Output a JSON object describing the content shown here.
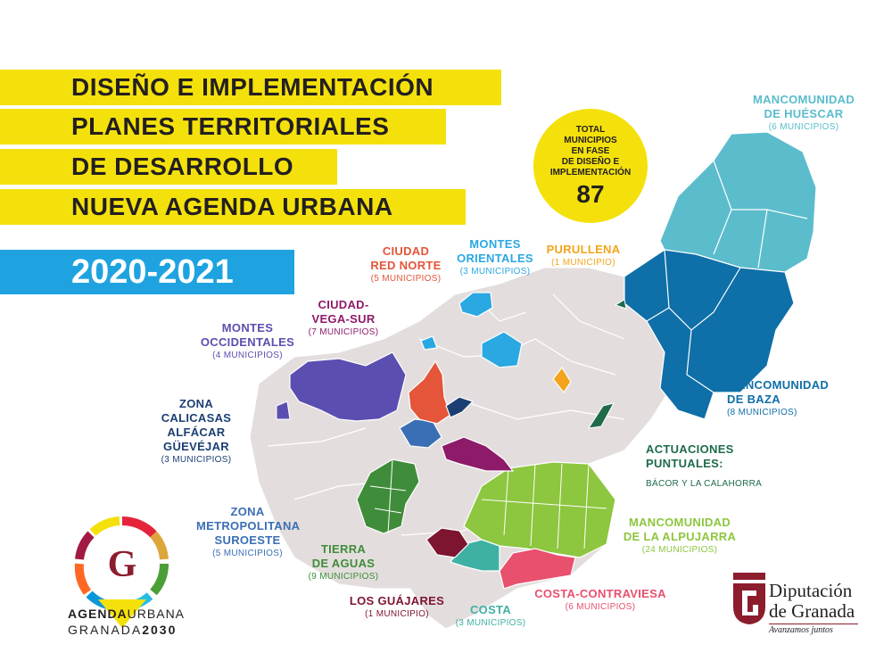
{
  "title": {
    "line1": "DISEÑO E IMPLEMENTACIÓN",
    "line2": "PLANES TERRITORIALES",
    "line3": "DE DESARROLLO",
    "line4": "NUEVA AGENDA URBANA",
    "years": "2020-2021"
  },
  "badge": {
    "text": "TOTAL\nMUNICIPIOS\nEN FASE\nDE DISEÑO E\nIMPLEMENTACIÓN",
    "number": "87"
  },
  "regions": {
    "huescar": {
      "name": "MANCOMUNIDAD\nDE HUÉSCAR",
      "count": "(6 MUNICIPIOS)",
      "color": "#5bbccc"
    },
    "baza": {
      "name": "MANCOMUNIDAD\nDE BAZA",
      "count": "(8 MUNICIPIOS)",
      "color": "#0f6fa8"
    },
    "purullena": {
      "name": "PURULLENA",
      "count": "(1 MUNICIPIO)",
      "color": "#f2a51c"
    },
    "montes_orientales": {
      "name": "MONTES\nORIENTALES",
      "count": "(3 MUNICIPIOS)",
      "color": "#2aa8e2"
    },
    "ciudad_red_norte": {
      "name": "CIUDAD\nRED NORTE",
      "count": "(5 MUNICIPIOS)",
      "color": "#e4553a"
    },
    "ciudad_vega_sur": {
      "name": "CIUDAD-\nVEGA-SUR",
      "count": "(7 MUNICIPIOS)",
      "color": "#8e1a6a"
    },
    "montes_occidentales": {
      "name": "MONTES\nOCCIDENTALES",
      "count": "(4 MUNICIPIOS)",
      "color": "#5a4fb0"
    },
    "calicasas": {
      "name": "ZONA\nCALICASAS\nALFÁCAR\nGÜEVÉJAR",
      "count": "(3 MUNICIPIOS)",
      "color": "#1b3f73"
    },
    "metropolitana": {
      "name": "ZONA\nMETROPOLITANA\nSUROESTE",
      "count": "(5 MUNICIPIOS)",
      "color": "#3a6fb5"
    },
    "tierra_aguas": {
      "name": "TIERRA\nDE AGUAS",
      "count": "(9 MUNICIPIOS)",
      "color": "#3f8c3a"
    },
    "guajares": {
      "name": "LOS GUÁJARES",
      "count": "(1 MUNICIPIO)",
      "color": "#7d1430"
    },
    "costa": {
      "name": "COSTA",
      "count": "(3 MUNICIPIOS)",
      "color": "#3fb0a4"
    },
    "contraviesa": {
      "name": "COSTA-CONTRAVIESA",
      "count": "(6 MUNICIPIOS)",
      "color": "#e8506e"
    },
    "alpujarra": {
      "name": "MANCOMUNIDAD\nDE LA ALPUJARRA",
      "count": "(24 MUNICIPIOS)",
      "color": "#8dc63f"
    },
    "actuaciones": {
      "name": "ACTUACIONES\nPUNTUALES:",
      "count": "BÁCOR Y LA CALAHORRA",
      "color": "#1f6b4a"
    }
  },
  "logo_left": {
    "caption_bold": "AGENDA",
    "caption_light": "URBANA",
    "caption2_light": "GRANADA",
    "caption2_bold": "2030"
  },
  "logo_right": {
    "line1": "Diputación",
    "line2": "de Granada",
    "slogan": "Avanzamos juntos"
  },
  "colors": {
    "yellow": "#f4e10c",
    "blue": "#1fa3e0",
    "map_base": "#e3dedd",
    "brand_red": "#8c1d2d"
  }
}
